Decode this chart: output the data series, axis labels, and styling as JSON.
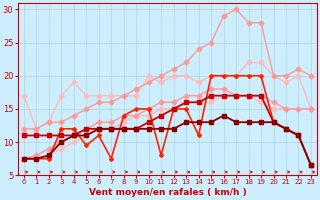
{
  "xlabel": "Vent moyen/en rafales ( km/h )",
  "xlim": [
    -0.5,
    23.5
  ],
  "ylim": [
    5,
    31
  ],
  "yticks": [
    5,
    10,
    15,
    20,
    25,
    30
  ],
  "xticks": [
    0,
    1,
    2,
    3,
    4,
    5,
    6,
    7,
    8,
    9,
    10,
    11,
    12,
    13,
    14,
    15,
    16,
    17,
    18,
    19,
    20,
    21,
    22,
    23
  ],
  "background_color": "#cceeff",
  "grid_color": "#aacccc",
  "series": [
    {
      "x": [
        0,
        1,
        2,
        3,
        4,
        5,
        6,
        7,
        8,
        9,
        10,
        11,
        12,
        13,
        14,
        15,
        16,
        17,
        18,
        19,
        20,
        21,
        22,
        23
      ],
      "y": [
        17,
        12,
        13,
        17,
        19,
        17,
        17,
        17,
        17,
        17,
        20,
        19,
        20,
        20,
        19,
        20,
        20,
        20,
        22,
        22,
        20,
        19,
        20,
        15
      ],
      "color": "#ffbbbb",
      "lw": 1.0,
      "marker": "D",
      "ms": 2.5
    },
    {
      "x": [
        0,
        1,
        2,
        3,
        4,
        5,
        6,
        7,
        8,
        9,
        10,
        11,
        12,
        13,
        14,
        15,
        16,
        17,
        18,
        19,
        20,
        21,
        22,
        23
      ],
      "y": [
        7.5,
        7.5,
        8,
        9,
        10,
        11,
        12,
        12,
        13,
        14,
        14,
        15,
        15,
        16,
        16,
        16,
        17,
        17,
        17,
        16,
        15,
        15,
        15,
        15
      ],
      "color": "#ffbbbb",
      "lw": 1.0,
      "marker": "D",
      "ms": 2.5
    },
    {
      "x": [
        0,
        1,
        2,
        3,
        4,
        5,
        6,
        7,
        8,
        9,
        10,
        11,
        12,
        13,
        14,
        15,
        16,
        17,
        18,
        19,
        20,
        21,
        22,
        23
      ],
      "y": [
        12,
        12,
        13,
        13,
        14,
        15,
        16,
        16,
        17,
        18,
        19,
        20,
        21,
        22,
        24,
        25,
        29,
        30,
        28,
        28,
        20,
        20,
        21,
        20
      ],
      "color": "#ff9999",
      "lw": 1.0,
      "marker": "D",
      "ms": 2.5
    },
    {
      "x": [
        0,
        1,
        2,
        3,
        4,
        5,
        6,
        7,
        8,
        9,
        10,
        11,
        12,
        13,
        14,
        15,
        16,
        17,
        18,
        19,
        20,
        21,
        22,
        23
      ],
      "y": [
        7.5,
        8,
        9,
        10,
        11,
        12,
        13,
        13,
        14,
        14,
        15,
        16,
        16,
        17,
        17,
        18,
        18,
        17,
        17,
        17,
        16,
        15,
        15,
        15
      ],
      "color": "#ff9999",
      "lw": 1.0,
      "marker": "D",
      "ms": 2.5
    },
    {
      "x": [
        0,
        1,
        2,
        3,
        4,
        5,
        6,
        7,
        8,
        9,
        10,
        11,
        12,
        13,
        14,
        15,
        16,
        17,
        18,
        19,
        20,
        21,
        22,
        23
      ],
      "y": [
        7.5,
        7.5,
        7.5,
        12,
        12,
        9.5,
        11,
        7.5,
        14,
        15,
        15,
        8,
        15,
        15,
        11,
        20,
        20,
        20,
        20,
        20,
        13,
        12,
        11,
        null
      ],
      "color": "#ff2200",
      "lw": 1.2,
      "marker": "D",
      "ms": 2.0
    },
    {
      "x": [
        0,
        1,
        2,
        3,
        4,
        5,
        6,
        7,
        8,
        9,
        10,
        11,
        12,
        13,
        14,
        15,
        16,
        17,
        18,
        19,
        20,
        21,
        22,
        23
      ],
      "y": [
        11,
        11,
        11,
        11,
        11,
        12,
        12,
        12,
        12,
        12,
        13,
        14,
        15,
        16,
        16,
        17,
        17,
        17,
        17,
        17,
        13,
        12,
        11,
        6.5
      ],
      "color": "#cc0000",
      "lw": 1.3,
      "marker": "s",
      "ms": 2.5
    },
    {
      "x": [
        0,
        1,
        2,
        3,
        4,
        5,
        6,
        7,
        8,
        9,
        10,
        11,
        12,
        13,
        14,
        15,
        16,
        17,
        18,
        19,
        20,
        21,
        22,
        23
      ],
      "y": [
        7.5,
        7.5,
        8,
        10,
        11,
        11,
        12,
        12,
        12,
        12,
        12,
        12,
        12,
        13,
        13,
        13,
        14,
        13,
        13,
        13,
        13,
        12,
        11,
        6.5
      ],
      "color": "#880000",
      "lw": 1.3,
      "marker": "s",
      "ms": 2.5
    }
  ],
  "arrow_color": "#cc0000",
  "spine_color": "#cc0000"
}
